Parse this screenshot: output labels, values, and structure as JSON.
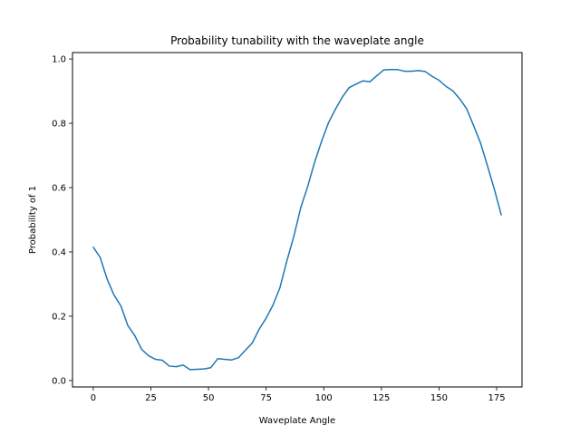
{
  "chart_data": {
    "type": "line",
    "title": "Probability tunability with the waveplate angle",
    "xlabel": "Waveplate Angle",
    "ylabel": "Probability of 1",
    "xlim": [
      -9,
      186
    ],
    "ylim": [
      -0.02,
      1.02
    ],
    "xticks": [
      "0",
      "25",
      "50",
      "75",
      "100",
      "125",
      "150",
      "175"
    ],
    "yticks": [
      "0.0",
      "0.2",
      "0.4",
      "0.6",
      "0.8",
      "1.0"
    ],
    "grid": false,
    "color": "#1f77b4",
    "series": [
      {
        "x": [
          0,
          3,
          6,
          9,
          12,
          15,
          18,
          21,
          24,
          27,
          30,
          33,
          36,
          39,
          42,
          45,
          48,
          51,
          54,
          57,
          60,
          63,
          66,
          69,
          72,
          75,
          78,
          81,
          84,
          87,
          90,
          93,
          96,
          99,
          102,
          105,
          108,
          111,
          114,
          117,
          120,
          123,
          126,
          129,
          132,
          135,
          138,
          141,
          144,
          147,
          150,
          153,
          156,
          159,
          162,
          165,
          168,
          171,
          174,
          177
        ],
        "y": [
          0.415,
          0.383,
          0.316,
          0.266,
          0.232,
          0.171,
          0.14,
          0.097,
          0.077,
          0.066,
          0.063,
          0.045,
          0.043,
          0.048,
          0.034,
          0.035,
          0.036,
          0.04,
          0.068,
          0.066,
          0.064,
          0.071,
          0.094,
          0.117,
          0.16,
          0.194,
          0.235,
          0.289,
          0.372,
          0.448,
          0.537,
          0.603,
          0.678,
          0.743,
          0.801,
          0.843,
          0.881,
          0.911,
          0.922,
          0.932,
          0.929,
          0.948,
          0.966,
          0.967,
          0.967,
          0.962,
          0.962,
          0.964,
          0.961,
          0.946,
          0.934,
          0.915,
          0.901,
          0.876,
          0.845,
          0.793,
          0.739,
          0.668,
          0.595,
          0.515
        ]
      }
    ]
  }
}
